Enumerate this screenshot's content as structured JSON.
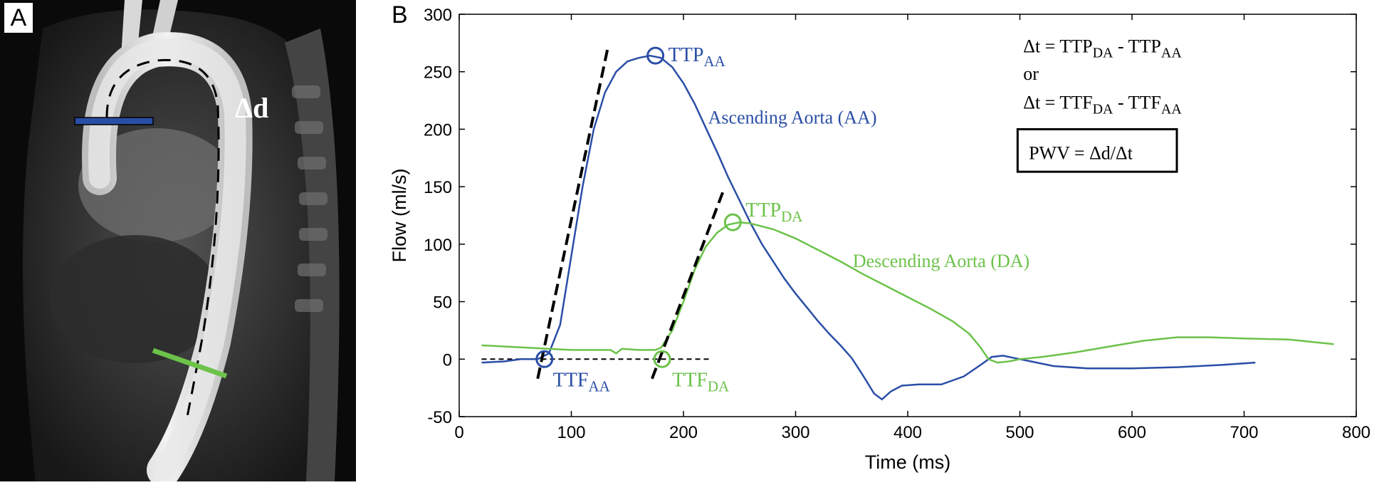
{
  "panel_a": {
    "label": "A",
    "distance_label": "Δd",
    "colors": {
      "ascending_marker": "#2a4ea6",
      "descending_marker": "#6cc24a"
    }
  },
  "chart_data": {
    "type": "line",
    "panel_label": "B",
    "xlabel": "Time (ms)",
    "ylabel": "Flow (ml/s)",
    "xlim": [
      0,
      800
    ],
    "ylim": [
      -50,
      300
    ],
    "xticks": [
      0,
      100,
      200,
      300,
      400,
      500,
      600,
      700,
      800
    ],
    "yticks": [
      -50,
      0,
      50,
      100,
      150,
      200,
      250,
      300
    ],
    "series": [
      {
        "name": "Ascending Aorta (AA)",
        "color": "#2a4ea6",
        "points": [
          [
            20,
            -3
          ],
          [
            40,
            -2
          ],
          [
            55,
            0
          ],
          [
            70,
            0
          ],
          [
            80,
            5
          ],
          [
            90,
            30
          ],
          [
            100,
            90
          ],
          [
            110,
            150
          ],
          [
            120,
            200
          ],
          [
            130,
            232
          ],
          [
            140,
            250
          ],
          [
            150,
            259
          ],
          [
            160,
            262
          ],
          [
            170,
            264
          ],
          [
            180,
            262
          ],
          [
            190,
            254
          ],
          [
            200,
            240
          ],
          [
            210,
            222
          ],
          [
            220,
            201
          ],
          [
            230,
            180
          ],
          [
            240,
            158
          ],
          [
            250,
            138
          ],
          [
            260,
            118
          ],
          [
            270,
            100
          ],
          [
            280,
            85
          ],
          [
            290,
            70
          ],
          [
            300,
            57
          ],
          [
            310,
            45
          ],
          [
            320,
            33
          ],
          [
            330,
            22
          ],
          [
            340,
            12
          ],
          [
            350,
            1
          ],
          [
            360,
            -14
          ],
          [
            370,
            -30
          ],
          [
            377,
            -35
          ],
          [
            385,
            -28
          ],
          [
            395,
            -23
          ],
          [
            410,
            -22
          ],
          [
            430,
            -22
          ],
          [
            450,
            -15
          ],
          [
            465,
            -5
          ],
          [
            475,
            2
          ],
          [
            485,
            3
          ],
          [
            495,
            1
          ],
          [
            510,
            -2
          ],
          [
            530,
            -6
          ],
          [
            560,
            -8
          ],
          [
            600,
            -8
          ],
          [
            640,
            -7
          ],
          [
            680,
            -5
          ],
          [
            710,
            -3
          ]
        ]
      },
      {
        "name": "Descending Aorta (DA)",
        "color": "#6cc24a",
        "points": [
          [
            20,
            12
          ],
          [
            40,
            11
          ],
          [
            60,
            10
          ],
          [
            80,
            9
          ],
          [
            100,
            8
          ],
          [
            120,
            8
          ],
          [
            135,
            8
          ],
          [
            140,
            5
          ],
          [
            145,
            9
          ],
          [
            160,
            8
          ],
          [
            175,
            8
          ],
          [
            180,
            10
          ],
          [
            190,
            25
          ],
          [
            200,
            50
          ],
          [
            210,
            78
          ],
          [
            220,
            98
          ],
          [
            230,
            110
          ],
          [
            240,
            117
          ],
          [
            250,
            119
          ],
          [
            260,
            118
          ],
          [
            280,
            113
          ],
          [
            300,
            105
          ],
          [
            320,
            95
          ],
          [
            340,
            85
          ],
          [
            360,
            74
          ],
          [
            380,
            64
          ],
          [
            400,
            54
          ],
          [
            420,
            44
          ],
          [
            440,
            33
          ],
          [
            455,
            22
          ],
          [
            465,
            10
          ],
          [
            472,
            0
          ],
          [
            480,
            -3
          ],
          [
            490,
            -2
          ],
          [
            500,
            0
          ],
          [
            520,
            2
          ],
          [
            550,
            6
          ],
          [
            580,
            11
          ],
          [
            610,
            16
          ],
          [
            640,
            19
          ],
          [
            670,
            19
          ],
          [
            700,
            18
          ],
          [
            740,
            17
          ],
          [
            780,
            13
          ]
        ]
      }
    ],
    "baseline": {
      "x": [
        20,
        225
      ],
      "y": 0
    },
    "tangents": [
      {
        "x": [
          70,
          133
        ],
        "y": [
          -17,
          273
        ]
      },
      {
        "x": [
          172,
          235
        ],
        "y": [
          -17,
          145
        ]
      }
    ],
    "markers": [
      {
        "name": "TTP_AA",
        "x": 175,
        "y": 264,
        "color": "#2a4ea6",
        "label": "TTP",
        "sub": "AA"
      },
      {
        "name": "TTF_AA",
        "x": 76,
        "y": 0,
        "color": "#2a4ea6",
        "label": "TTF",
        "sub": "AA"
      },
      {
        "name": "TTP_DA",
        "x": 244,
        "y": 119,
        "color": "#6cc24a",
        "label": "TTP",
        "sub": "DA"
      },
      {
        "name": "TTF_DA",
        "x": 181,
        "y": 0,
        "color": "#6cc24a",
        "label": "TTF",
        "sub": "DA"
      }
    ],
    "annotations": {
      "series_labels": [
        "Ascending Aorta (AA)",
        "Descending Aorta (DA)"
      ],
      "formula_line1": {
        "lhs": "Δt = TTP",
        "sub1": "DA",
        "mid": " - TTP",
        "sub2": "AA"
      },
      "formula_or": "or",
      "formula_line2": {
        "lhs": "Δt = TTF",
        "sub1": "DA",
        "mid": " - TTF",
        "sub2": "AA"
      },
      "formula_box": "PWV = Δd/Δt"
    }
  }
}
